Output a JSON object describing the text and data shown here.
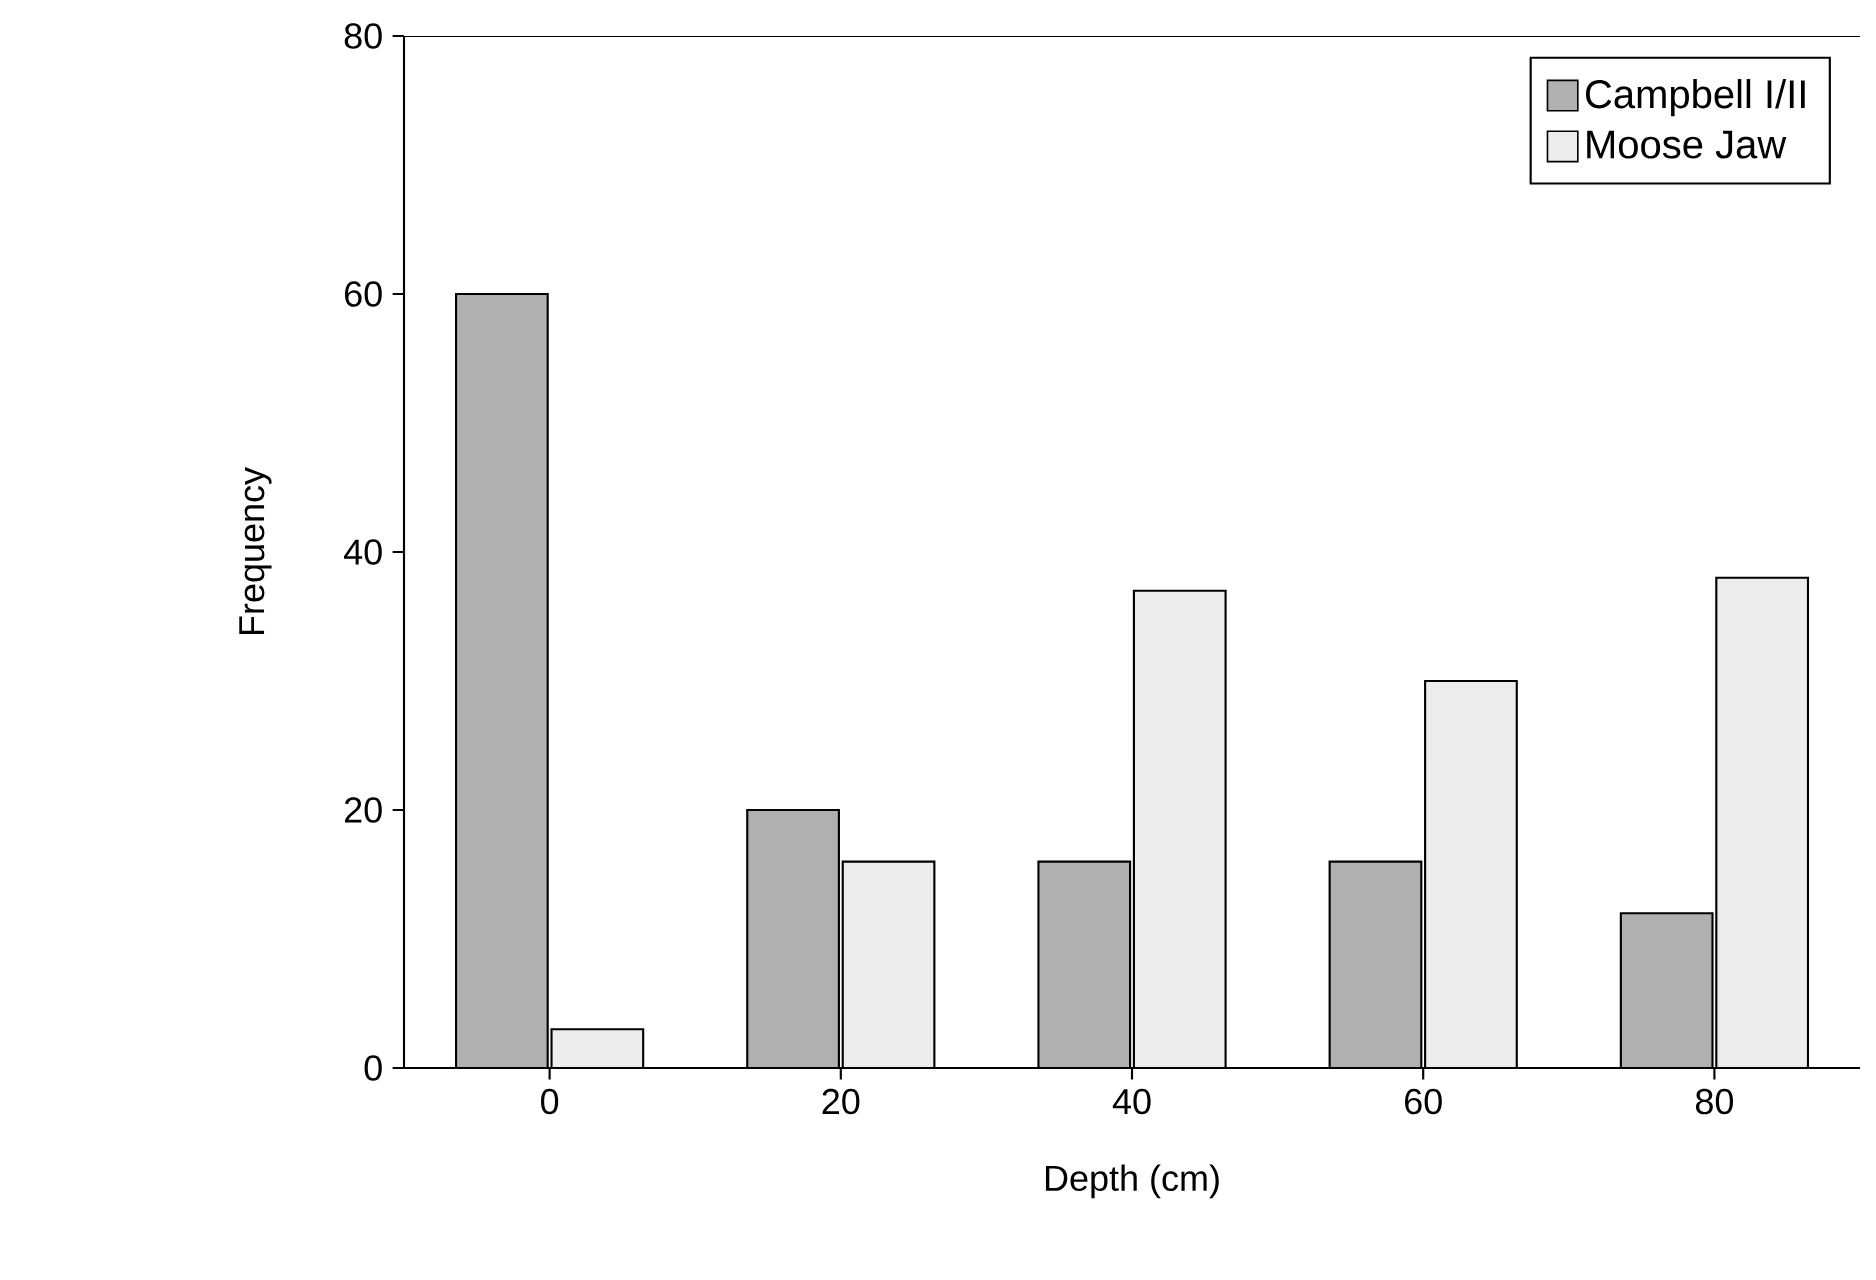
{
  "chart_data": {
    "type": "bar",
    "xlabel": "Depth (cm)",
    "ylabel": "Frequency",
    "categories": [
      "0",
      "20",
      "40",
      "60",
      "80"
    ],
    "series": [
      {
        "name": "Campbell I/II",
        "color": "#b0b0b0",
        "values": [
          60,
          20,
          16,
          16,
          12
        ]
      },
      {
        "name": "Moose Jaw",
        "color": "#ececec",
        "values": [
          3,
          16,
          37,
          30,
          38
        ]
      }
    ],
    "ylim": [
      0,
      80
    ],
    "yticks": [
      0,
      20,
      40,
      60,
      80
    ],
    "legend": "top right",
    "grid": false
  }
}
